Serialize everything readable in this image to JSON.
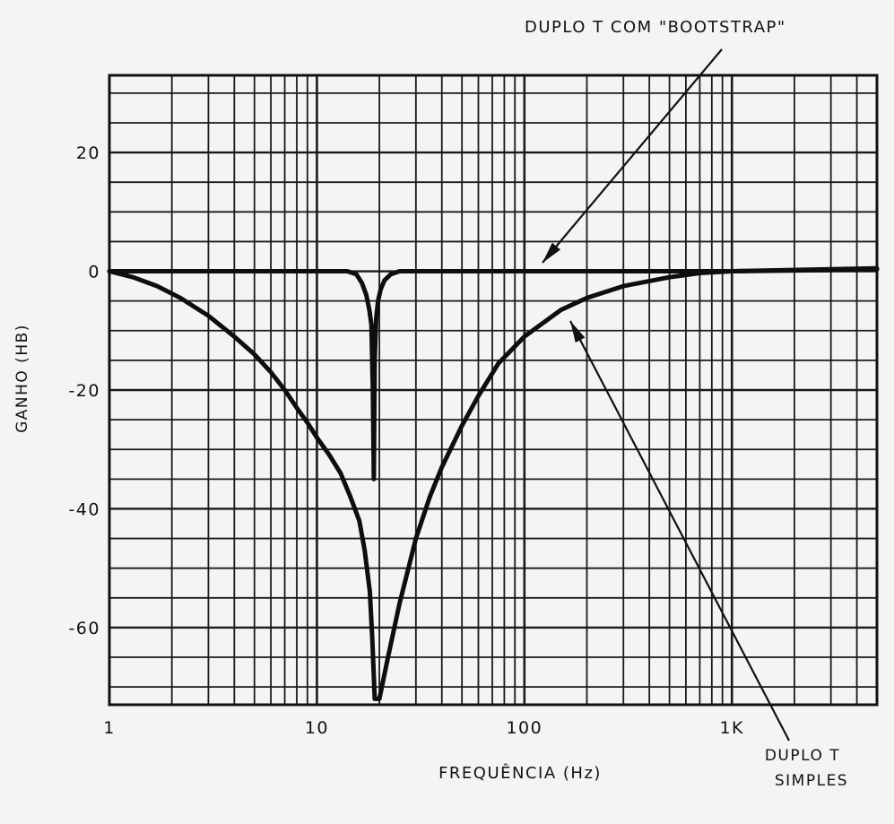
{
  "chart_data": {
    "type": "line",
    "xlabel": "FREQUÊNCIA (Hz)",
    "ylabel": "GANHO (HB)",
    "x_scale": "log",
    "xlim": [
      1,
      5000
    ],
    "ylim": [
      -73,
      33
    ],
    "x_ticks": [
      {
        "value": 1,
        "label": "1"
      },
      {
        "value": 10,
        "label": "10"
      },
      {
        "value": 100,
        "label": "100"
      },
      {
        "value": 1000,
        "label": "1K"
      }
    ],
    "y_ticks": [
      {
        "value": 20,
        "label": "20"
      },
      {
        "value": 0,
        "label": "0"
      },
      {
        "value": -20,
        "label": "-20"
      },
      {
        "value": -40,
        "label": "-40"
      },
      {
        "value": -60,
        "label": "-60"
      }
    ],
    "grid": true,
    "series": [
      {
        "name": "DUPLO T COM \"BOOTSTRAP\"",
        "x": [
          1,
          5,
          10,
          14,
          15.5,
          16.5,
          17.3,
          17.9,
          18.3,
          18.6,
          18.8,
          19.0,
          19.3,
          19.7,
          20.3,
          21.2,
          22.7,
          25,
          30,
          50,
          100,
          500,
          1000,
          5000
        ],
        "y": [
          0,
          0,
          0,
          0,
          -0.5,
          -2,
          -4,
          -6.5,
          -9,
          -20,
          -35,
          -15,
          -8,
          -5,
          -3,
          -1.5,
          -0.5,
          0,
          0,
          0,
          0,
          0,
          0,
          0.3
        ]
      },
      {
        "name": "DUPLO T SIMPLES",
        "x": [
          1,
          1.3,
          1.7,
          2.2,
          3,
          4,
          5,
          6,
          7,
          8,
          9,
          10,
          11.5,
          13,
          14.5,
          16,
          17,
          18,
          18.5,
          19,
          20,
          22,
          25,
          30,
          35,
          40,
          50,
          60,
          75,
          100,
          150,
          200,
          300,
          500,
          700,
          1000,
          5000
        ],
        "y": [
          0,
          -1,
          -2.5,
          -4.5,
          -7.5,
          -11,
          -14,
          -17,
          -20,
          -23,
          -25.5,
          -28,
          -31,
          -34,
          -38,
          -42,
          -47,
          -54,
          -62,
          -72,
          -72,
          -65,
          -56,
          -45,
          -38,
          -33,
          -26,
          -21,
          -15.5,
          -11,
          -6.5,
          -4.5,
          -2.5,
          -1,
          -0.3,
          0,
          0.5
        ]
      }
    ]
  }
}
